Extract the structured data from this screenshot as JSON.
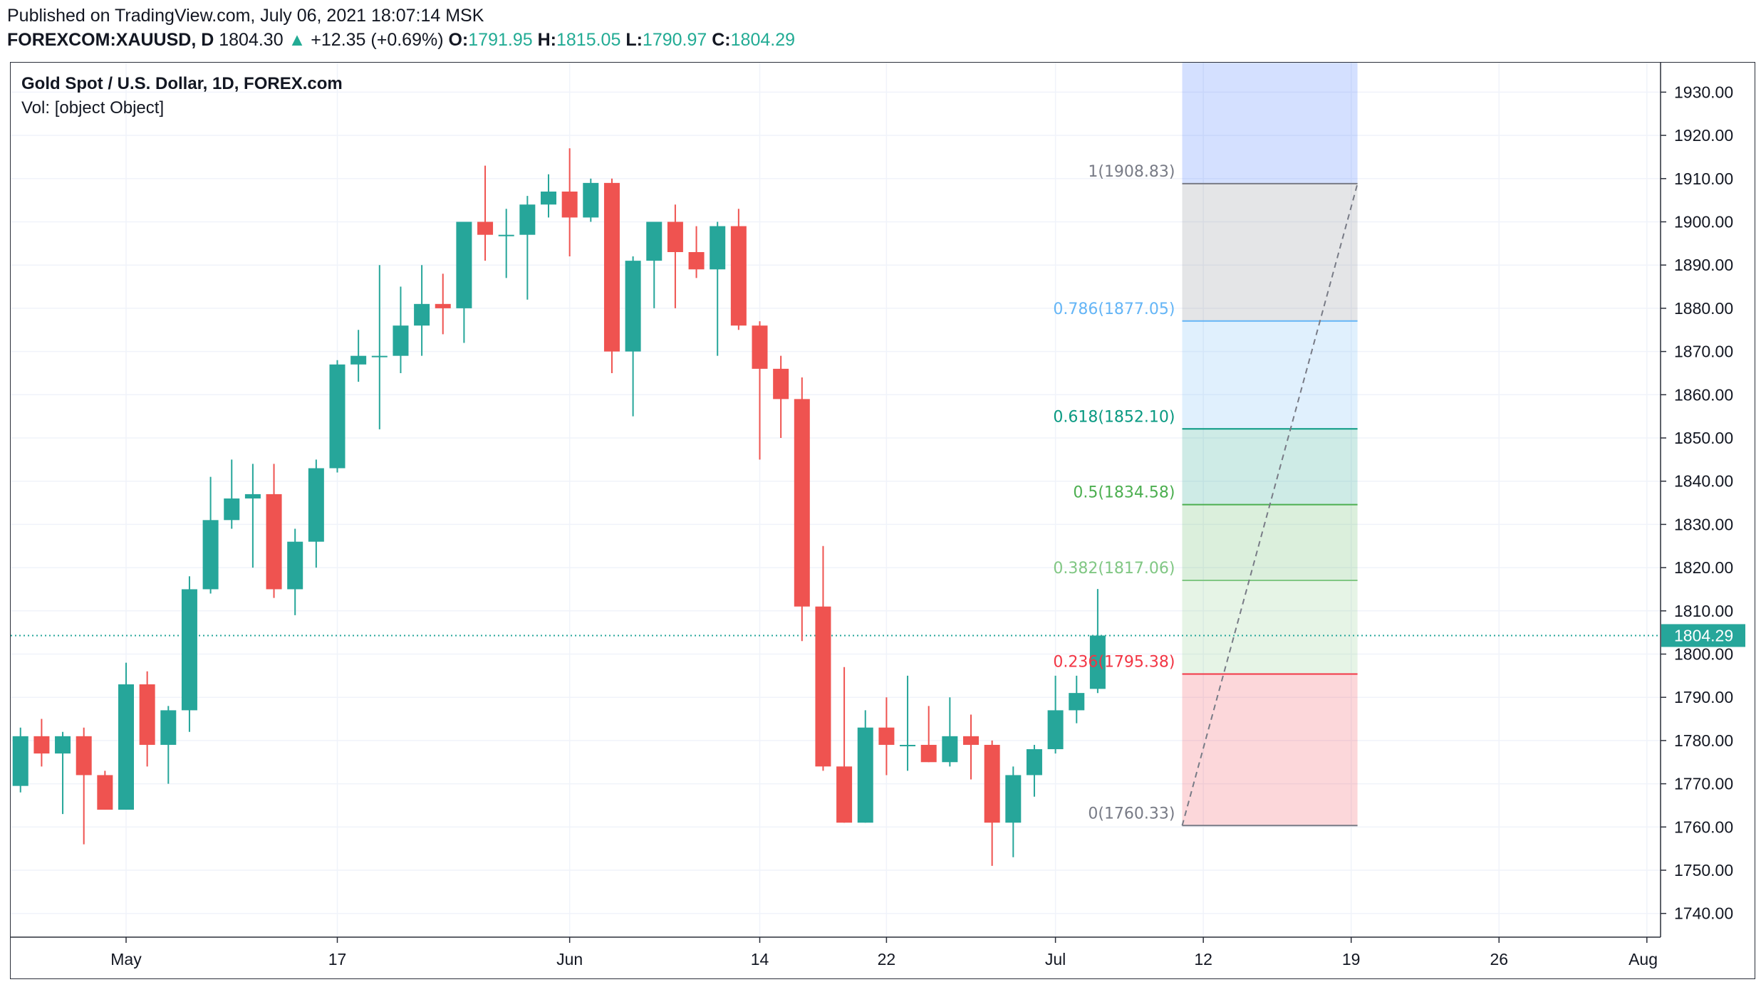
{
  "header": {
    "published": "Published on TradingView.com, July 06, 2021 18:07:14 MSK",
    "symbol": "FOREXCOM:XAUUSD, D",
    "last": "1804.30",
    "arrow": "▲",
    "change": "+12.35 (+0.69%)",
    "o_label": "O:",
    "o": "1791.95",
    "h_label": "H:",
    "h": "1815.05",
    "l_label": "L:",
    "l": "1790.97",
    "c_label": "C:",
    "c": "1804.29"
  },
  "legend": {
    "title": "Gold Spot / U.S. Dollar, 1D, FOREX.com",
    "vol": "Vol: [object Object]"
  },
  "colors": {
    "up": "#26a69a",
    "down": "#ef5350",
    "last_price": "#26a69a"
  },
  "chart_data": {
    "type": "candlestick",
    "title": "Gold Spot / U.S. Dollar, 1D, FOREX.com",
    "ylim": [
      1735,
      1938
    ],
    "y_ticks": [
      "1930.00",
      "1920.00",
      "1910.00",
      "1900.00",
      "1890.00",
      "1880.00",
      "1870.00",
      "1860.00",
      "1850.00",
      "1840.00",
      "1830.00",
      "1820.00",
      "1810.00",
      "1800.00",
      "1790.00",
      "1780.00",
      "1770.00",
      "1760.00",
      "1750.00",
      "1740.00"
    ],
    "x_ticks": [
      {
        "label": "May",
        "day": 0
      },
      {
        "label": "17",
        "day": 10
      },
      {
        "label": "Jun",
        "day": 21
      },
      {
        "label": "14",
        "day": 30
      },
      {
        "label": "22",
        "day": 36
      },
      {
        "label": "Jul",
        "day": 44
      },
      {
        "label": "12",
        "day": 51
      },
      {
        "label": "19",
        "day": 58
      },
      {
        "label": "26",
        "day": 65
      },
      {
        "label": "Aug",
        "day": 72
      }
    ],
    "candles": [
      {
        "day": -5,
        "o": 1769.5,
        "h": 1783,
        "l": 1768,
        "c": 1781
      },
      {
        "day": -4,
        "o": 1781,
        "h": 1785,
        "l": 1774,
        "c": 1777
      },
      {
        "day": -3,
        "o": 1777,
        "h": 1782,
        "l": 1763,
        "c": 1781
      },
      {
        "day": -2,
        "o": 1781,
        "h": 1783,
        "l": 1756,
        "c": 1772
      },
      {
        "day": -1,
        "o": 1772,
        "h": 1773,
        "l": 1764,
        "c": 1764
      },
      {
        "day": 0,
        "o": 1764,
        "h": 1798,
        "l": 1764,
        "c": 1793
      },
      {
        "day": 1,
        "o": 1793,
        "h": 1796,
        "l": 1774,
        "c": 1779
      },
      {
        "day": 2,
        "o": 1779,
        "h": 1788,
        "l": 1770,
        "c": 1787
      },
      {
        "day": 3,
        "o": 1787,
        "h": 1818,
        "l": 1782,
        "c": 1815
      },
      {
        "day": 4,
        "o": 1815,
        "h": 1841,
        "l": 1814,
        "c": 1831
      },
      {
        "day": 5,
        "o": 1831,
        "h": 1845,
        "l": 1829,
        "c": 1836
      },
      {
        "day": 6,
        "o": 1836,
        "h": 1844,
        "l": 1820,
        "c": 1837
      },
      {
        "day": 7,
        "o": 1837,
        "h": 1844,
        "l": 1813,
        "c": 1815
      },
      {
        "day": 8,
        "o": 1815,
        "h": 1829,
        "l": 1809,
        "c": 1826
      },
      {
        "day": 9,
        "o": 1826,
        "h": 1845,
        "l": 1820,
        "c": 1843
      },
      {
        "day": 10,
        "o": 1843,
        "h": 1868,
        "l": 1842,
        "c": 1867
      },
      {
        "day": 11,
        "o": 1867,
        "h": 1875,
        "l": 1863,
        "c": 1869
      },
      {
        "day": 12,
        "o": 1869,
        "h": 1890,
        "l": 1852,
        "c": 1869
      },
      {
        "day": 13,
        "o": 1869,
        "h": 1885,
        "l": 1865,
        "c": 1876
      },
      {
        "day": 14,
        "o": 1876,
        "h": 1890,
        "l": 1869,
        "c": 1881
      },
      {
        "day": 15,
        "o": 1881,
        "h": 1888,
        "l": 1874,
        "c": 1880
      },
      {
        "day": 16,
        "o": 1880,
        "h": 1900,
        "l": 1872,
        "c": 1900
      },
      {
        "day": 17,
        "o": 1900,
        "h": 1913,
        "l": 1891,
        "c": 1897
      },
      {
        "day": 18,
        "o": 1897,
        "h": 1903,
        "l": 1887,
        "c": 1897
      },
      {
        "day": 19,
        "o": 1897,
        "h": 1906,
        "l": 1882,
        "c": 1904
      },
      {
        "day": 20,
        "o": 1904,
        "h": 1911,
        "l": 1901,
        "c": 1907
      },
      {
        "day": 21,
        "o": 1907,
        "h": 1917,
        "l": 1892,
        "c": 1901
      },
      {
        "day": 22,
        "o": 1901,
        "h": 1910,
        "l": 1900,
        "c": 1909
      },
      {
        "day": 23,
        "o": 1909,
        "h": 1910,
        "l": 1865,
        "c": 1870
      },
      {
        "day": 24,
        "o": 1870,
        "h": 1892,
        "l": 1855,
        "c": 1891
      },
      {
        "day": 25,
        "o": 1891,
        "h": 1900,
        "l": 1880,
        "c": 1900
      },
      {
        "day": 26,
        "o": 1900,
        "h": 1904,
        "l": 1880,
        "c": 1893
      },
      {
        "day": 27,
        "o": 1893,
        "h": 1899,
        "l": 1887,
        "c": 1889
      },
      {
        "day": 28,
        "o": 1889,
        "h": 1900,
        "l": 1869,
        "c": 1899
      },
      {
        "day": 29,
        "o": 1899,
        "h": 1903,
        "l": 1875,
        "c": 1876
      },
      {
        "day": 30,
        "o": 1876,
        "h": 1877,
        "l": 1845,
        "c": 1866
      },
      {
        "day": 31,
        "o": 1866,
        "h": 1869,
        "l": 1850,
        "c": 1859
      },
      {
        "day": 32,
        "o": 1859,
        "h": 1864,
        "l": 1803,
        "c": 1811
      },
      {
        "day": 33,
        "o": 1811,
        "h": 1825,
        "l": 1773,
        "c": 1774
      },
      {
        "day": 34,
        "o": 1774,
        "h": 1797,
        "l": 1761,
        "c": 1761
      },
      {
        "day": 35,
        "o": 1761,
        "h": 1787,
        "l": 1761,
        "c": 1783
      },
      {
        "day": 36,
        "o": 1783,
        "h": 1790,
        "l": 1772,
        "c": 1779
      },
      {
        "day": 37,
        "o": 1779,
        "h": 1795,
        "l": 1773,
        "c": 1779
      },
      {
        "day": 38,
        "o": 1779,
        "h": 1788,
        "l": 1775,
        "c": 1775
      },
      {
        "day": 39,
        "o": 1775,
        "h": 1790,
        "l": 1774,
        "c": 1781
      },
      {
        "day": 40,
        "o": 1781,
        "h": 1786,
        "l": 1771,
        "c": 1779
      },
      {
        "day": 41,
        "o": 1779,
        "h": 1780,
        "l": 1751,
        "c": 1761
      },
      {
        "day": 42,
        "o": 1761,
        "h": 1774,
        "l": 1753,
        "c": 1772
      },
      {
        "day": 43,
        "o": 1772,
        "h": 1779,
        "l": 1767,
        "c": 1778
      },
      {
        "day": 44,
        "o": 1778,
        "h": 1795,
        "l": 1777,
        "c": 1787
      },
      {
        "day": 45,
        "o": 1787,
        "h": 1795,
        "l": 1784,
        "c": 1791
      },
      {
        "day": 46,
        "o": 1791.95,
        "h": 1815.05,
        "l": 1790.97,
        "c": 1804.29
      }
    ],
    "last_price": {
      "value": 1804.29,
      "label": "1804.29"
    },
    "fib_retracement": {
      "from": {
        "day": 50,
        "price": 1760.33
      },
      "to": {
        "day": 58.3,
        "price": 1908.83
      },
      "levels": [
        {
          "ratio": 1,
          "price": 1908.83,
          "label": "1(1908.83)",
          "color": "#787b86",
          "fill": "#2962ff",
          "fill_top": 1940
        },
        {
          "ratio": 0.786,
          "price": 1877.05,
          "label": "0.786(1877.05)",
          "color": "#64b5f6",
          "fill": "#787b86"
        },
        {
          "ratio": 0.618,
          "price": 1852.1,
          "label": "0.618(1852.10)",
          "color": "#089981",
          "fill": "#64b5f6"
        },
        {
          "ratio": 0.5,
          "price": 1834.58,
          "label": "0.5(1834.58)",
          "color": "#4caf50",
          "fill": "#089981"
        },
        {
          "ratio": 0.382,
          "price": 1817.06,
          "label": "0.382(1817.06)",
          "color": "#81c784",
          "fill": "#4caf50"
        },
        {
          "ratio": 0.236,
          "price": 1795.38,
          "label": "0.236(1795.38)",
          "color": "#f23645",
          "fill": "#81c784"
        },
        {
          "ratio": 0,
          "price": 1760.33,
          "label": "0(1760.33)",
          "color": "#787b86",
          "fill": "#f23645"
        }
      ]
    }
  }
}
